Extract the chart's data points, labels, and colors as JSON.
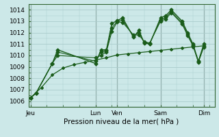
{
  "background_color": "#cce8e8",
  "grid_color": "#aacccc",
  "line_color": "#1a5c1a",
  "xlabel": "Pression niveau de la mer( hPa )",
  "ylim": [
    1005.5,
    1014.5
  ],
  "yticks": [
    1006,
    1007,
    1008,
    1009,
    1010,
    1011,
    1012,
    1013,
    1014
  ],
  "day_labels": [
    "Jeu",
    "Lun",
    "Ven",
    "Sam",
    "Dim"
  ],
  "day_x": [
    0,
    3,
    4,
    6,
    8
  ],
  "xlim": [
    -0.1,
    8.5
  ],
  "series": [
    {
      "x": [
        0.0,
        0.25,
        1.0,
        1.25,
        3.0,
        3.25,
        3.5,
        3.75,
        4.0,
        4.25,
        4.75,
        5.0,
        5.25,
        5.5,
        6.0,
        6.25,
        6.5,
        7.0,
        7.25,
        7.5,
        7.75,
        8.0
      ],
      "y": [
        1006.3,
        1006.7,
        1009.3,
        1010.5,
        1009.3,
        1010.5,
        1010.5,
        1012.8,
        1013.05,
        1013.3,
        1011.6,
        1012.2,
        1011.1,
        1011.0,
        1013.3,
        1013.5,
        1014.0,
        1013.0,
        1012.0,
        1011.0,
        1009.5,
        1011.0
      ],
      "linestyle": "-",
      "linewidth": 1.0
    },
    {
      "x": [
        0.0,
        0.25,
        1.0,
        1.25,
        3.0,
        3.25,
        3.5,
        3.75,
        4.0,
        4.25,
        4.75,
        5.0,
        5.25,
        5.5,
        6.0,
        6.25,
        6.5,
        7.0,
        7.25,
        7.5,
        7.75,
        8.0
      ],
      "y": [
        1006.3,
        1006.7,
        1009.3,
        1010.3,
        1009.5,
        1010.3,
        1010.4,
        1012.4,
        1013.0,
        1013.1,
        1011.7,
        1012.0,
        1011.15,
        1011.05,
        1013.1,
        1013.35,
        1013.85,
        1012.85,
        1011.85,
        1010.9,
        1009.45,
        1010.85
      ],
      "linestyle": "-",
      "linewidth": 0.8
    },
    {
      "x": [
        0.0,
        0.25,
        1.0,
        1.25,
        3.0,
        3.25,
        3.5,
        3.75,
        4.0,
        4.25,
        4.75,
        5.0,
        5.25,
        5.5,
        6.0,
        6.25,
        6.5,
        7.0,
        7.25,
        7.5,
        7.75,
        8.0
      ],
      "y": [
        1006.3,
        1006.7,
        1009.3,
        1010.0,
        1009.8,
        1010.0,
        1010.3,
        1012.1,
        1012.95,
        1012.9,
        1011.8,
        1011.8,
        1011.2,
        1011.1,
        1013.0,
        1013.2,
        1013.75,
        1012.75,
        1011.75,
        1010.85,
        1009.4,
        1010.75
      ],
      "linestyle": "-",
      "linewidth": 0.8
    },
    {
      "x": [
        0.0,
        0.5,
        1.0,
        1.5,
        2.0,
        2.5,
        3.0,
        3.5,
        4.0,
        4.5,
        5.0,
        5.5,
        6.0,
        6.5,
        7.0,
        7.5,
        8.0
      ],
      "y": [
        1006.3,
        1007.2,
        1008.3,
        1008.9,
        1009.2,
        1009.4,
        1009.6,
        1009.8,
        1010.05,
        1010.15,
        1010.25,
        1010.35,
        1010.45,
        1010.55,
        1010.65,
        1010.75,
        1010.85
      ],
      "linestyle": "-",
      "linewidth": 0.9
    }
  ]
}
